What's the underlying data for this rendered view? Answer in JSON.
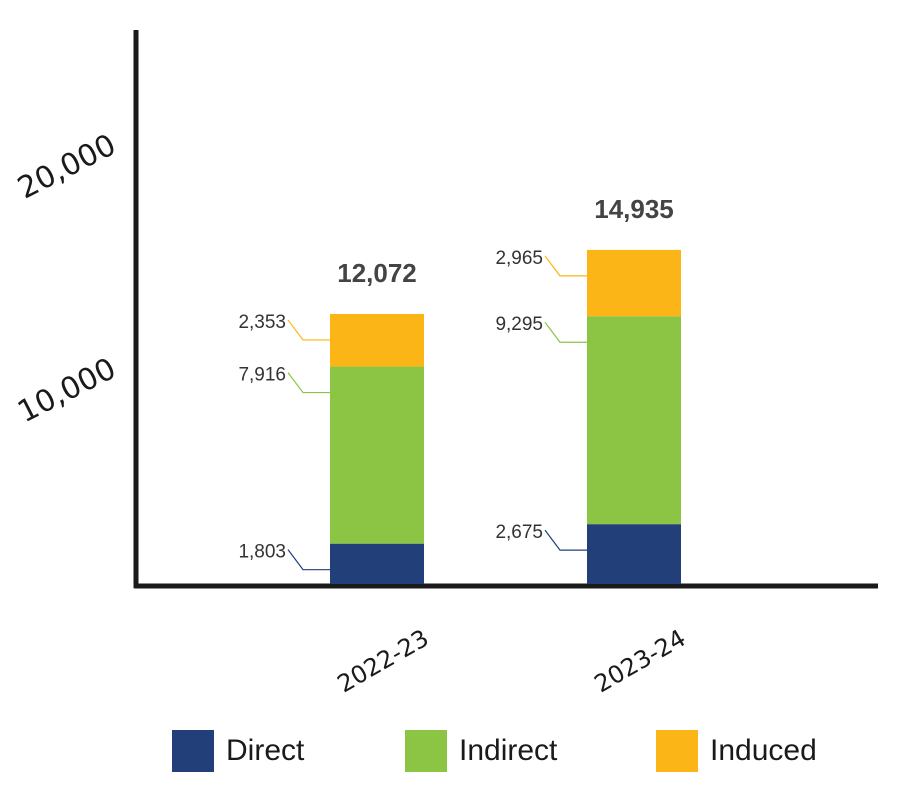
{
  "chart_data": {
    "type": "bar",
    "stacked": true,
    "categories": [
      "2022-23",
      "2023-24"
    ],
    "series": [
      {
        "name": "Direct",
        "color": "#223f7a",
        "values": [
          1803,
          2675
        ]
      },
      {
        "name": "Indirect",
        "color": "#8cc443",
        "values": [
          7916,
          9295
        ]
      },
      {
        "name": "Induced",
        "color": "#fbb516",
        "values": [
          2353,
          2965
        ]
      }
    ],
    "totals": [
      "12,072",
      "14,935"
    ],
    "value_labels": [
      [
        "1,803",
        "7,916",
        "2,353"
      ],
      [
        "2,675",
        "9,295",
        "2,965"
      ]
    ],
    "ytick_labels": [
      "10,000",
      "20,000"
    ],
    "yticks": [
      10000,
      20000
    ],
    "ylim": [
      0,
      25000
    ],
    "grid": false,
    "legend_position": "bottom"
  }
}
